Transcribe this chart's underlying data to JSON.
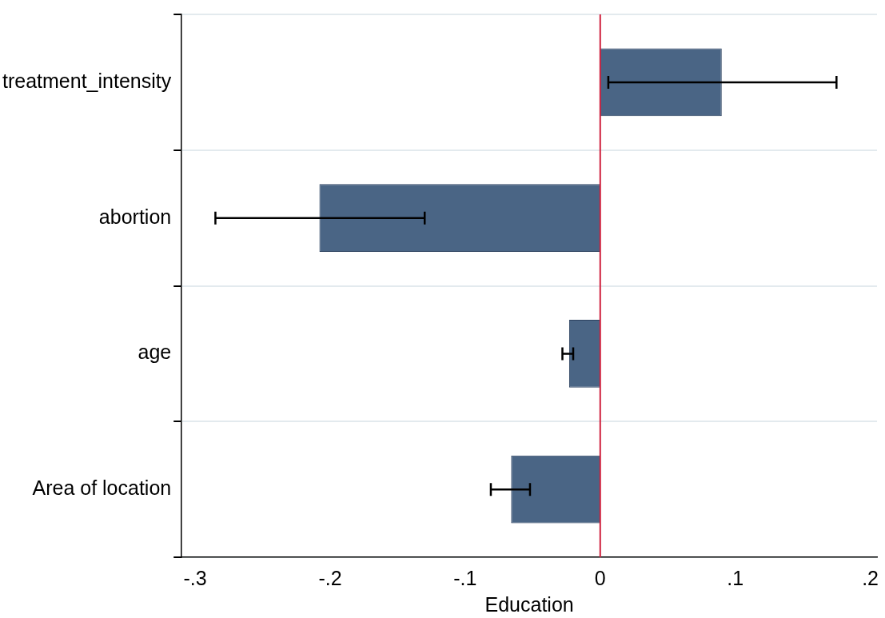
{
  "chart_data": {
    "type": "bar",
    "orientation": "horizontal",
    "xlabel": "Education",
    "categories": [
      "treatment_intensity",
      "abortion",
      "age",
      "Area of location"
    ],
    "values": [
      0.09,
      -0.208,
      -0.023,
      -0.066
    ],
    "errors": [
      [
        0.006,
        0.175
      ],
      [
        -0.285,
        -0.13
      ],
      [
        -0.028,
        -0.02
      ],
      [
        -0.081,
        -0.052
      ]
    ],
    "color": "#4a6585",
    "xlim": [
      -0.31,
      0.205
    ],
    "xticks": [
      {
        "value": -0.3,
        "label": "-.3"
      },
      {
        "value": -0.2,
        "label": "-.2"
      },
      {
        "value": -0.1,
        "label": "-.1"
      },
      0,
      {
        "value": 0.1,
        "label": ".1"
      },
      {
        "value": 0.2,
        "label": ".2"
      }
    ],
    "ref_lines": [
      {
        "axis": "x",
        "value": 0,
        "color": "#d0213e"
      }
    ],
    "grid": "y",
    "legend": false
  }
}
